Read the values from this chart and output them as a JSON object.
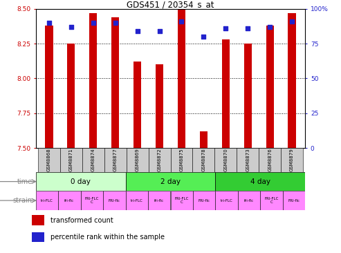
{
  "title": "GDS451 / 20354_s_at",
  "samples": [
    "GSM8868",
    "GSM8871",
    "GSM8874",
    "GSM8877",
    "GSM8869",
    "GSM8872",
    "GSM8875",
    "GSM8878",
    "GSM8870",
    "GSM8873",
    "GSM8876",
    "GSM8879"
  ],
  "transformed_counts": [
    8.38,
    8.25,
    8.47,
    8.44,
    8.12,
    8.1,
    8.5,
    7.62,
    8.28,
    8.25,
    8.38,
    8.47
  ],
  "percentile_ranks": [
    90,
    87,
    90,
    90,
    84,
    84,
    91,
    80,
    86,
    86,
    87,
    91
  ],
  "ylim_left": [
    7.5,
    8.5
  ],
  "ylim_right": [
    0,
    100
  ],
  "yticks_left": [
    7.5,
    7.75,
    8.0,
    8.25,
    8.5
  ],
  "yticks_right": [
    0,
    25,
    50,
    75,
    100
  ],
  "bar_color": "#cc0000",
  "dot_color": "#2222cc",
  "bar_bottom": 7.5,
  "time_groups": [
    {
      "label": "0 day",
      "start": 0,
      "end": 4,
      "color": "#ccffcc"
    },
    {
      "label": "2 day",
      "start": 4,
      "end": 8,
      "color": "#55ee55"
    },
    {
      "label": "4 day",
      "start": 8,
      "end": 12,
      "color": "#33cc33"
    }
  ],
  "strain_labels": [
    "tri-FLC",
    "fri-flc",
    "FRI-FLC\nC",
    "FRI-flc",
    "tri-FLC",
    "fri-flc",
    "FRI-FLC\nC",
    "FRI-flc",
    "tri-FLC",
    "fri-flc",
    "FRI-FLC\nC",
    "FRI-flc"
  ],
  "strain_color": "#ff88ff",
  "tick_label_color_left": "#cc0000",
  "tick_label_color_right": "#2222cc",
  "grid_color": "#000000",
  "sample_bg_color": "#cccccc",
  "bar_width": 0.35
}
